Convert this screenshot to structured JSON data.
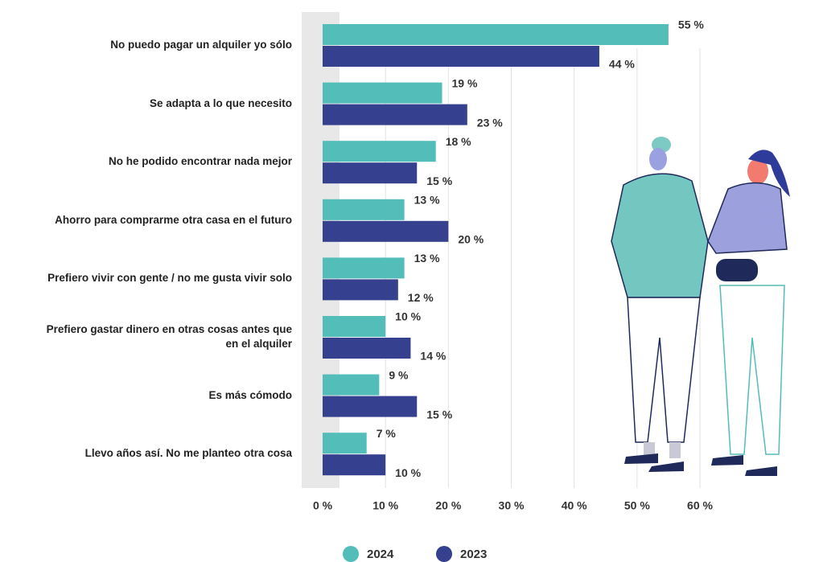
{
  "chart_data": {
    "type": "bar",
    "orientation": "horizontal",
    "categories": [
      "No puedo pagar un alquiler yo sólo",
      "Se adapta a lo que necesito",
      "No he podido encontrar nada mejor",
      "Ahorro para comprarme otra casa en el futuro",
      "Prefiero vivir con gente / no me gusta vivir solo",
      "Prefiero gastar dinero en otras cosas antes que\nen el alquiler",
      "Es más cómodo",
      "Llevo años así. No me planteo otra cosa"
    ],
    "series": [
      {
        "name": "2024",
        "color": "#52bdb9",
        "values": [
          55,
          19,
          18,
          13,
          13,
          10,
          9,
          7
        ],
        "value_labels": [
          "55 %",
          "19 %",
          "18 %",
          "13 %",
          "13 %",
          "10 %",
          "9 %",
          "7 %"
        ]
      },
      {
        "name": "2023",
        "color": "#35408f",
        "values": [
          44,
          23,
          15,
          20,
          12,
          14,
          15,
          10
        ],
        "value_labels": [
          "44 %",
          "23 %",
          "15 %",
          "20 %",
          "12 %",
          "14 %",
          "15 %",
          "10 %"
        ]
      }
    ],
    "xlim": [
      0,
      60
    ],
    "xticks": [
      {
        "value": 0,
        "label": "0 %"
      },
      {
        "value": 10,
        "label": "10 %"
      },
      {
        "value": 20,
        "label": "20 %"
      },
      {
        "value": 30,
        "label": "30 %"
      },
      {
        "value": 40,
        "label": "40 %"
      },
      {
        "value": 50,
        "label": "50 %"
      },
      {
        "value": 60,
        "label": "60 %"
      }
    ],
    "grid": true,
    "legend": "bottom"
  }
}
